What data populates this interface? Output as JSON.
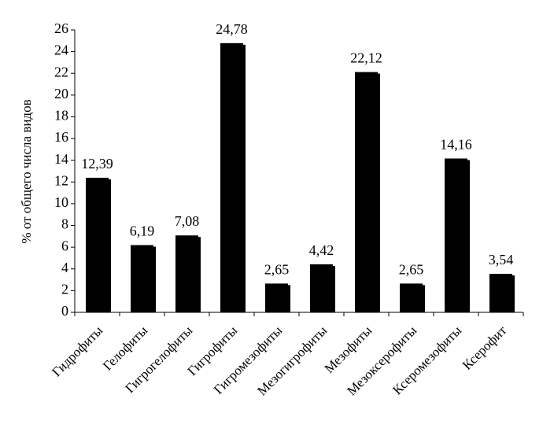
{
  "chart_data": {
    "type": "bar",
    "title": "",
    "xlabel": "",
    "ylabel": "% от общего числа видов",
    "categories": [
      "Гидрофиты",
      "Гелофиты",
      "Гигрогелофиты",
      "Гигрофиты",
      "Гигромезофиты",
      "Мезогигрофиты",
      "Мезофиты",
      "Мезоксерофиты",
      "Ксеромезофиты",
      "Ксерофит"
    ],
    "values": [
      12.39,
      6.19,
      7.08,
      24.78,
      2.65,
      4.42,
      22.12,
      2.65,
      14.16,
      3.54
    ],
    "value_labels": [
      "12,39",
      "6,19",
      "7,08",
      "24,78",
      "2,65",
      "4,42",
      "22,12",
      "2,65",
      "14,16",
      "3,54"
    ],
    "ylim": [
      0,
      26
    ],
    "yticks": [
      0,
      2,
      4,
      6,
      8,
      10,
      12,
      14,
      16,
      18,
      20,
      22,
      24,
      26
    ],
    "grid": false,
    "legend": "none",
    "bar_color": "#000000"
  }
}
